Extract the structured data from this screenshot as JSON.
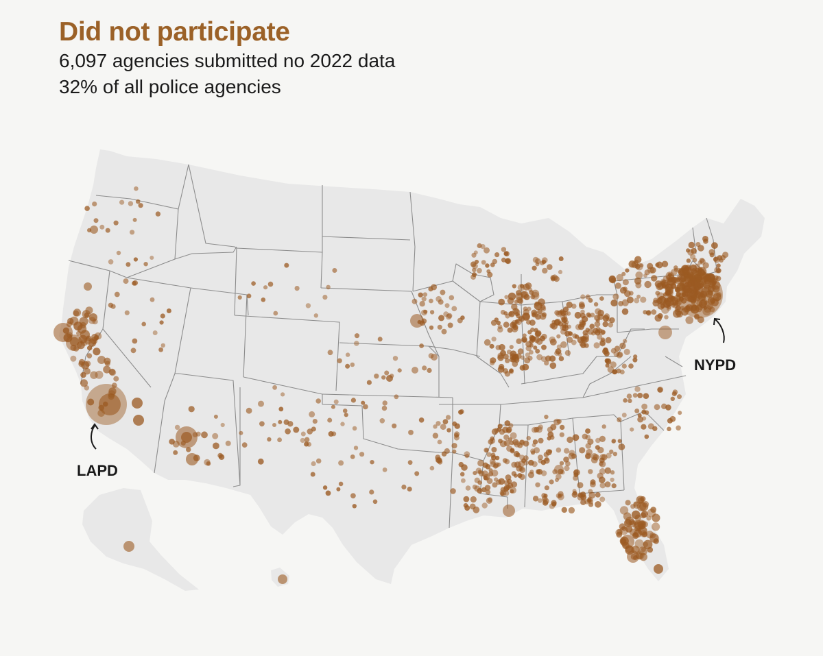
{
  "header": {
    "title": "Did not participate",
    "line1": "6,097 agencies submitted no 2022 data",
    "line2": "32% of all police agencies"
  },
  "colors": {
    "accent": "#9b6127",
    "dot": "#9b5a22",
    "land": "#e8e8e8",
    "border": "#8c8c8c",
    "background": "#f6f6f4"
  },
  "callouts": {
    "la": "LAPD",
    "ny": "NYPD"
  }
}
